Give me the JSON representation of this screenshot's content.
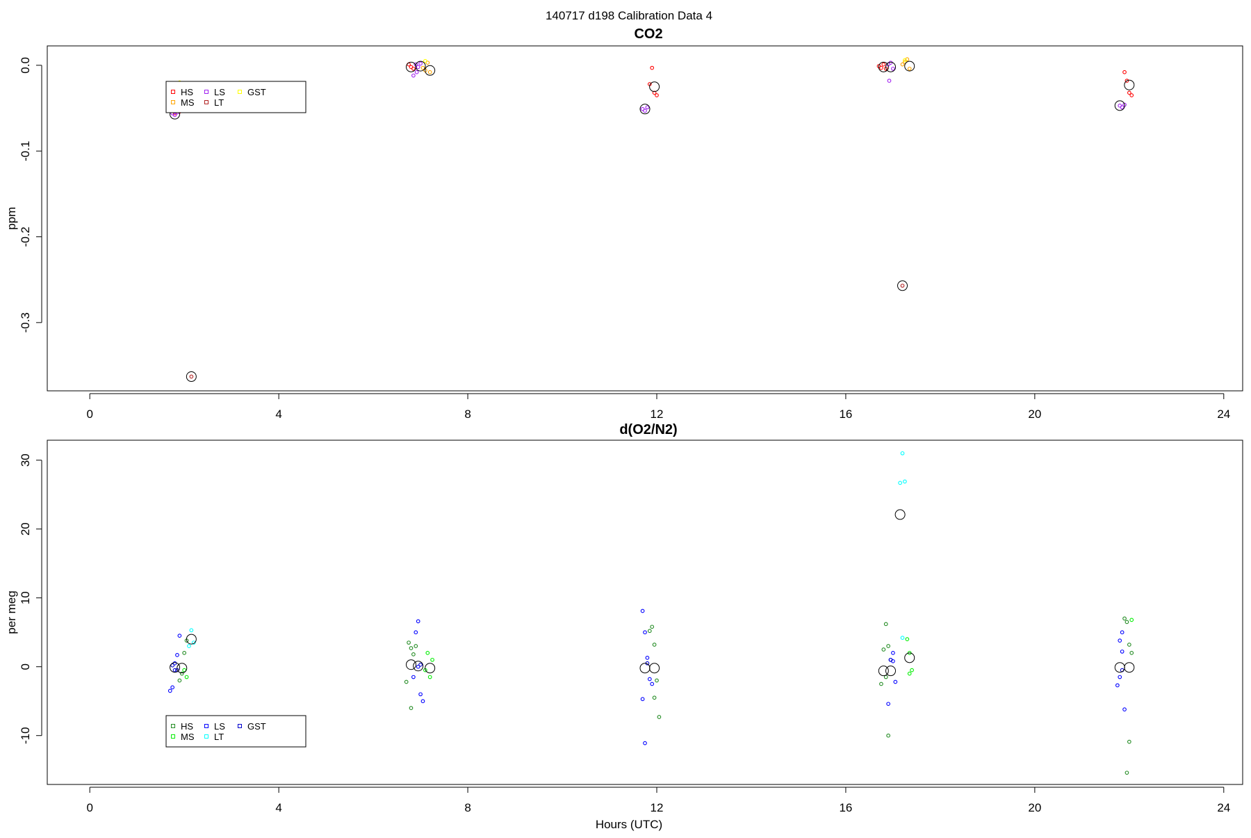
{
  "figure": {
    "title": "140717   d198   Calibration Data 4",
    "xlabel": "Hours (UTC)"
  },
  "chart_data": [
    {
      "type": "scatter",
      "title": "CO2",
      "xlabel": "",
      "ylabel": "ppm",
      "xlim": [
        -0.9,
        24.4
      ],
      "ylim": [
        -0.3796,
        0.0226
      ],
      "xticks": [
        0,
        4,
        8,
        12,
        16,
        20,
        24
      ],
      "yticks": [
        0.0,
        -0.1,
        -0.2,
        -0.3
      ],
      "ytick_labels": [
        "0.0",
        "-0.1",
        "-0.2",
        "-0.3"
      ],
      "legend": {
        "position": "top-left",
        "entries": [
          {
            "label": "HS",
            "color": "#ff0000"
          },
          {
            "label": "MS",
            "color": "#ffa500"
          },
          {
            "label": "LS",
            "color": "#a020f0"
          },
          {
            "label": "LT",
            "color": "#b22222"
          },
          {
            "label": "GST",
            "color": "#ffff00"
          }
        ]
      },
      "series": [
        {
          "name": "HS",
          "color": "#ff0000",
          "points": [
            [
              1.8,
              -0.056
            ],
            [
              1.9,
              -0.054
            ],
            [
              6.8,
              -0.002
            ],
            [
              6.75,
              0.001
            ],
            [
              6.85,
              -0.004
            ],
            [
              11.85,
              -0.022
            ],
            [
              11.95,
              -0.032
            ],
            [
              12.0,
              -0.035
            ],
            [
              11.9,
              -0.003
            ],
            [
              16.7,
              -0.001
            ],
            [
              16.75,
              -0.003
            ],
            [
              16.8,
              0.001
            ],
            [
              16.85,
              -0.004
            ],
            [
              21.9,
              -0.008
            ],
            [
              21.95,
              -0.018
            ],
            [
              22.0,
              -0.032
            ],
            [
              22.05,
              -0.035
            ]
          ]
        },
        {
          "name": "MS",
          "color": "#ffa500",
          "points": [
            [
              7.05,
              -0.003
            ],
            [
              7.1,
              -0.006
            ],
            [
              7.15,
              0.003
            ],
            [
              7.2,
              -0.008
            ],
            [
              17.2,
              0.001
            ],
            [
              17.25,
              0.004
            ],
            [
              17.3,
              0.007
            ],
            [
              17.35,
              -0.004
            ]
          ]
        },
        {
          "name": "LS",
          "color": "#a020f0",
          "points": [
            [
              1.75,
              -0.056
            ],
            [
              1.8,
              -0.058
            ],
            [
              1.85,
              -0.055
            ],
            [
              6.9,
              0.001
            ],
            [
              6.95,
              -0.002
            ],
            [
              7.0,
              0.002
            ],
            [
              6.92,
              -0.008
            ],
            [
              6.85,
              -0.012
            ],
            [
              11.7,
              -0.051
            ],
            [
              11.75,
              -0.053
            ],
            [
              11.8,
              -0.049
            ],
            [
              16.9,
              0.001
            ],
            [
              16.95,
              0.003
            ],
            [
              17.0,
              -0.004
            ],
            [
              16.92,
              -0.018
            ],
            [
              21.8,
              -0.047
            ],
            [
              21.85,
              -0.049
            ],
            [
              21.9,
              -0.046
            ]
          ]
        },
        {
          "name": "LT",
          "color": "#b22222",
          "points": [
            [
              2.15,
              -0.363
            ],
            [
              17.2,
              -0.257
            ]
          ]
        },
        {
          "name": "GST",
          "color": "#ffff00",
          "points": [
            [
              1.9,
              -0.02
            ],
            [
              7.1,
              0.005
            ],
            [
              17.25,
              0.006
            ]
          ]
        },
        {
          "name": "",
          "color": "#000000",
          "kind": "mean",
          "points": [
            [
              1.8,
              -0.057
            ],
            [
              2.15,
              -0.363
            ],
            [
              6.8,
              -0.002
            ],
            [
              7.0,
              -0.001
            ],
            [
              7.2,
              -0.006
            ],
            [
              11.75,
              -0.051
            ],
            [
              11.95,
              -0.025
            ],
            [
              16.8,
              -0.002
            ],
            [
              16.95,
              -0.002
            ],
            [
              17.2,
              -0.257
            ],
            [
              17.35,
              -0.001
            ],
            [
              21.8,
              -0.047
            ],
            [
              22.0,
              -0.023
            ]
          ]
        }
      ]
    },
    {
      "type": "scatter",
      "title": "d(O2/N2)",
      "xlabel": "Hours (UTC)",
      "ylabel": "per meg",
      "xlim": [
        -0.9,
        24.4
      ],
      "ylim": [
        -17.1,
        32.9
      ],
      "xticks": [
        0,
        4,
        8,
        12,
        16,
        20,
        24
      ],
      "yticks": [
        30,
        20,
        10,
        0,
        -10
      ],
      "ytick_labels": [
        "30",
        "20",
        "10",
        "0",
        "-10"
      ],
      "legend": {
        "position": "bottom-left",
        "entries": [
          {
            "label": "HS",
            "color": "#228b22"
          },
          {
            "label": "MS",
            "color": "#00ee00"
          },
          {
            "label": "LS",
            "color": "#0000ff"
          },
          {
            "label": "LT",
            "color": "#00ffff"
          },
          {
            "label": "GST",
            "color": "#0000cd"
          }
        ]
      },
      "series": [
        {
          "name": "HS",
          "color": "#228b22",
          "points": [
            [
              1.9,
              -2.0
            ],
            [
              1.95,
              -1.0
            ],
            [
              2.0,
              2.0
            ],
            [
              2.05,
              3.8
            ],
            [
              6.75,
              3.5
            ],
            [
              6.8,
              2.7
            ],
            [
              6.85,
              1.8
            ],
            [
              6.7,
              -2.2
            ],
            [
              6.8,
              -6.0
            ],
            [
              6.9,
              3.0
            ],
            [
              11.85,
              5.2
            ],
            [
              11.9,
              5.8
            ],
            [
              11.95,
              3.2
            ],
            [
              12.0,
              -2.0
            ],
            [
              12.05,
              -7.3
            ],
            [
              11.95,
              -4.5
            ],
            [
              16.85,
              6.2
            ],
            [
              16.9,
              3.0
            ],
            [
              16.8,
              2.5
            ],
            [
              16.75,
              -2.5
            ],
            [
              16.85,
              -1.5
            ],
            [
              16.9,
              -10.0
            ],
            [
              21.9,
              7.0
            ],
            [
              21.95,
              6.5
            ],
            [
              22.0,
              3.2
            ],
            [
              22.05,
              2.0
            ],
            [
              22.0,
              -10.9
            ],
            [
              21.95,
              -15.4
            ]
          ]
        },
        {
          "name": "MS",
          "color": "#00ee00",
          "points": [
            [
              2.0,
              -0.5
            ],
            [
              2.05,
              -1.5
            ],
            [
              7.15,
              2.0
            ],
            [
              7.2,
              -1.5
            ],
            [
              7.25,
              1.0
            ],
            [
              7.1,
              -0.5
            ],
            [
              17.3,
              4.0
            ],
            [
              17.35,
              2.0
            ],
            [
              17.4,
              -0.5
            ],
            [
              17.35,
              -1.0
            ],
            [
              22.05,
              6.8
            ]
          ]
        },
        {
          "name": "LS",
          "color": "#0000ff",
          "points": [
            [
              1.7,
              -3.5
            ],
            [
              1.75,
              -3.0
            ],
            [
              1.85,
              1.7
            ],
            [
              1.8,
              0.5
            ],
            [
              1.9,
              4.5
            ],
            [
              1.85,
              -0.5
            ],
            [
              6.95,
              6.6
            ],
            [
              6.9,
              5.0
            ],
            [
              7.0,
              -4.0
            ],
            [
              7.05,
              -5.0
            ],
            [
              6.95,
              0.0
            ],
            [
              6.85,
              -1.5
            ],
            [
              11.7,
              8.1
            ],
            [
              11.75,
              5.0
            ],
            [
              11.8,
              1.3
            ],
            [
              11.85,
              -1.8
            ],
            [
              11.7,
              -4.7
            ],
            [
              11.75,
              -11.1
            ],
            [
              11.9,
              -2.5
            ],
            [
              16.95,
              1.0
            ],
            [
              17.0,
              0.8
            ],
            [
              17.05,
              -2.2
            ],
            [
              16.9,
              -5.4
            ],
            [
              17.0,
              2.0
            ],
            [
              21.85,
              5.0
            ],
            [
              21.8,
              3.8
            ],
            [
              21.85,
              2.2
            ],
            [
              21.8,
              -1.5
            ],
            [
              21.75,
              -2.7
            ],
            [
              21.9,
              -6.2
            ]
          ]
        },
        {
          "name": "LT",
          "color": "#00ffff",
          "points": [
            [
              2.15,
              5.3
            ],
            [
              2.1,
              3.0
            ],
            [
              2.2,
              3.5
            ],
            [
              17.2,
              31.0
            ],
            [
              17.15,
              26.7
            ],
            [
              17.25,
              26.9
            ],
            [
              17.2,
              4.2
            ]
          ]
        },
        {
          "name": "GST",
          "color": "#0000cd",
          "points": [
            [
              1.75,
              0.2
            ],
            [
              1.8,
              -0.5
            ],
            [
              7.0,
              0.3
            ],
            [
              11.8,
              0.5
            ],
            [
              16.95,
              1.0
            ],
            [
              21.85,
              -0.5
            ]
          ]
        },
        {
          "name": "",
          "color": "#000000",
          "kind": "mean",
          "points": [
            [
              1.8,
              -0.1
            ],
            [
              1.95,
              -0.2
            ],
            [
              2.15,
              4.0
            ],
            [
              6.8,
              0.3
            ],
            [
              6.95,
              0.1
            ],
            [
              7.2,
              -0.2
            ],
            [
              11.75,
              -0.2
            ],
            [
              11.95,
              -0.2
            ],
            [
              16.8,
              -0.6
            ],
            [
              16.95,
              -0.6
            ],
            [
              17.15,
              22.1
            ],
            [
              17.35,
              1.3
            ],
            [
              21.8,
              -0.1
            ],
            [
              22.0,
              -0.1
            ]
          ]
        }
      ]
    }
  ]
}
